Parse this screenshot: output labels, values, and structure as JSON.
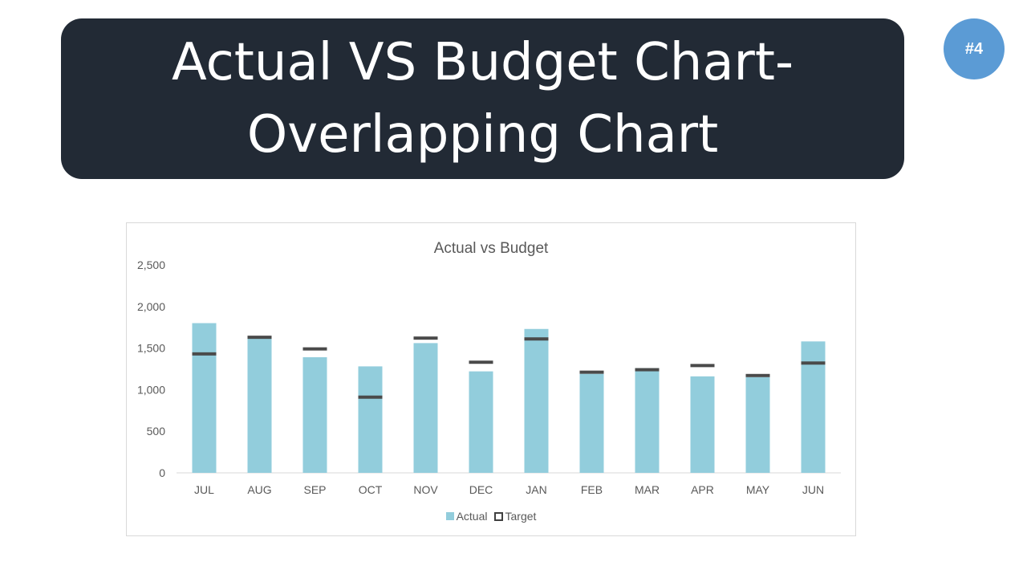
{
  "banner": {
    "title_line1": "Actual VS Budget Chart-",
    "title_line2": "Overlapping Chart"
  },
  "badge": "#4",
  "colors": {
    "banner": "#222a35",
    "badge": "#5b9bd5",
    "actual": "#92cddc",
    "target": "#4a4a4a"
  },
  "chart_data": {
    "type": "bar",
    "title": "Actual vs Budget",
    "categories": [
      "JUL",
      "AUG",
      "SEP",
      "OCT",
      "NOV",
      "DEC",
      "JAN",
      "FEB",
      "MAR",
      "APR",
      "MAY",
      "JUN"
    ],
    "series": [
      {
        "name": "Actual",
        "type": "bar",
        "values": [
          1800,
          1630,
          1390,
          1280,
          1560,
          1220,
          1730,
          1190,
          1260,
          1160,
          1150,
          1580
        ]
      },
      {
        "name": "Target",
        "type": "marker",
        "values": [
          1430,
          1630,
          1490,
          910,
          1620,
          1330,
          1610,
          1210,
          1240,
          1290,
          1170,
          1320
        ]
      }
    ],
    "yticks": [
      "0",
      "500",
      "1,000",
      "1,500",
      "2,000",
      "2,500"
    ],
    "ylim": [
      0,
      2500
    ],
    "grid": false,
    "legend": "bottom"
  }
}
